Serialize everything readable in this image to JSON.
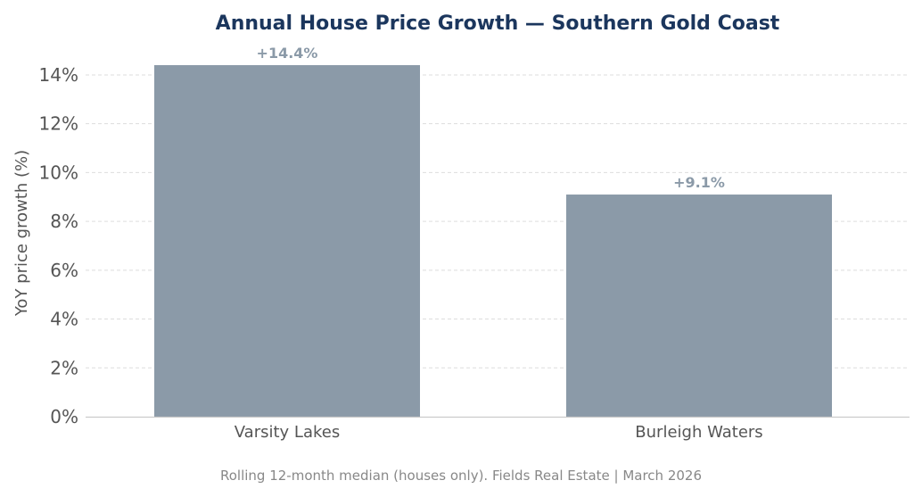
{
  "chart_data": {
    "type": "bar",
    "title": "Annual House Price Growth — Southern Gold Coast",
    "xlabel": "",
    "ylabel": "YoY price growth (%)",
    "categories": [
      "Varsity Lakes",
      "Burleigh Waters"
    ],
    "values": [
      14.4,
      9.1
    ],
    "data_labels": [
      "+14.4%",
      "+9.1%"
    ],
    "yticks": [
      0,
      2,
      4,
      6,
      8,
      10,
      12,
      14
    ],
    "ytick_labels": [
      "0%",
      "2%",
      "4%",
      "6%",
      "8%",
      "10%",
      "12%",
      "14%"
    ],
    "ylim": [
      0,
      15.3
    ],
    "grid": true,
    "caption": "Rolling 12-month median (houses only). Fields Real Estate | March 2026",
    "colors": {
      "bar": "#8b9aa8",
      "title": "#1b365d",
      "label": "#8b9aa8",
      "grid": "#dddddd"
    }
  }
}
